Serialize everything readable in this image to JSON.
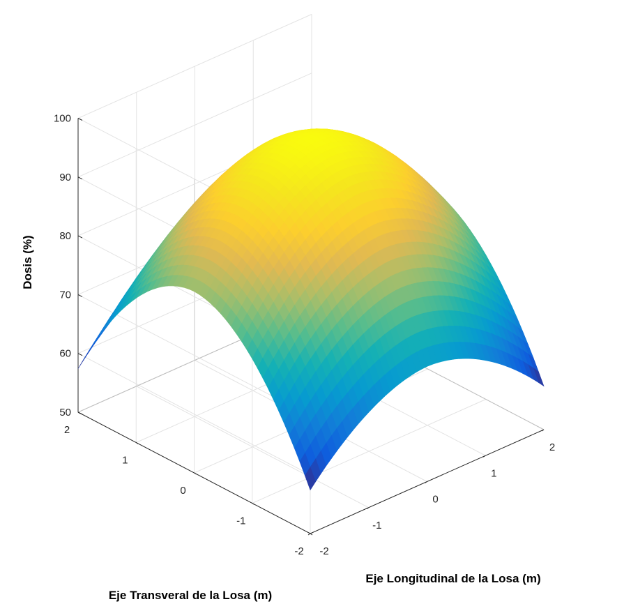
{
  "chart_data": {
    "type": "surface",
    "title": "",
    "xlabel": "Eje Longitudinal de la Losa  (m)",
    "ylabel": "Eje Transveral de la Losa  (m)",
    "zlabel": "Dosis  (%)",
    "x_ticks": [
      "-2",
      "-1",
      "0",
      "1",
      "2"
    ],
    "y_ticks": [
      "-2",
      "-1",
      "0",
      "1",
      "2"
    ],
    "z_ticks": [
      "50",
      "60",
      "70",
      "80",
      "90",
      "100"
    ],
    "xlim": [
      -2,
      2
    ],
    "ylim": [
      -2,
      2
    ],
    "zlim": [
      50,
      100
    ],
    "grid": true,
    "colormap": "parula",
    "surface": {
      "peak": 98,
      "x_profile": [
        {
          "x": -2,
          "factor": 0.825
        },
        {
          "x": -1,
          "factor": 0.947
        },
        {
          "x": 0,
          "factor": 1.0
        },
        {
          "x": 1,
          "factor": 0.947
        },
        {
          "x": 2,
          "factor": 0.825
        }
      ],
      "y_profile": [
        {
          "y": -2,
          "factor": 0.71
        },
        {
          "y": -1,
          "factor": 0.91
        },
        {
          "y": 0,
          "factor": 1.0
        },
        {
          "y": 1,
          "factor": 0.91
        },
        {
          "y": 2,
          "factor": 0.71
        }
      ],
      "corner_values": {
        "x_-2_y_-2": 57.5,
        "x_2_y_-2": 57.5,
        "x_-2_y_2": 57.5,
        "x_2_y_2": 57.5
      },
      "edge_midpoints": {
        "x_0_y_-2": 69.6,
        "x_0_y_2": 69.6,
        "x_-2_y_0": 80.9,
        "x_2_y_0": 80.9
      }
    }
  }
}
